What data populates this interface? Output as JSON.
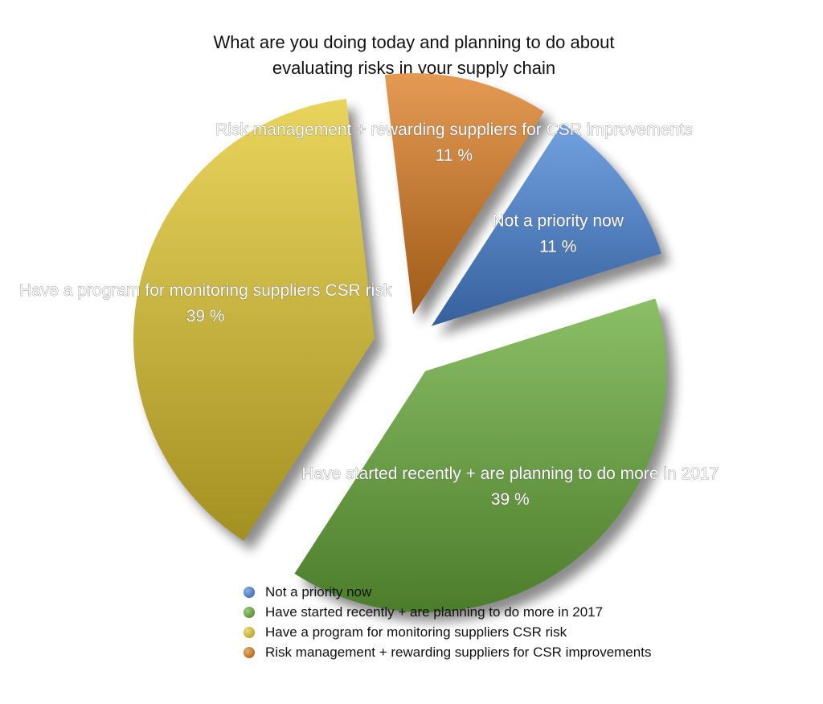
{
  "chart_data": {
    "type": "pie",
    "title": "What are you doing today and planning to do about evaluating risks in your supply chain",
    "title_lines": [
      "What are you doing today and planning to do about",
      "evaluating risks in your supply chain"
    ],
    "unit": "%",
    "exploded": true,
    "legend_position": "bottom",
    "slices": [
      {
        "label": "Not a priority now",
        "value": 11,
        "display": "11 %",
        "color": "#4a86d8"
      },
      {
        "label": "Have started recently + are planning to do more in 2017",
        "value": 39,
        "display": "39 %",
        "color": "#6aad3c"
      },
      {
        "label": "Have a program for monitoring suppliers CSR risk",
        "value": 39,
        "display": "39 %",
        "color": "#e3c82f"
      },
      {
        "label": "Risk management + rewarding suppliers for CSR improvements",
        "value": 11,
        "display": "11 %",
        "color": "#dd7e22"
      }
    ]
  }
}
